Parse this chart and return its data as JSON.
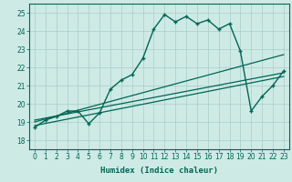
{
  "xlabel": "Humidex (Indice chaleur)",
  "bg_color": "#ceeae5",
  "grid_color": "#a8ccc8",
  "line_color": "#006655",
  "xlim": [
    -0.5,
    23.5
  ],
  "ylim": [
    17.5,
    25.5
  ],
  "yticks": [
    18,
    19,
    20,
    21,
    22,
    23,
    24,
    25
  ],
  "xticks": [
    0,
    1,
    2,
    3,
    4,
    5,
    6,
    7,
    8,
    9,
    10,
    11,
    12,
    13,
    14,
    15,
    16,
    17,
    18,
    19,
    20,
    21,
    22,
    23
  ],
  "main_y": [
    18.7,
    19.1,
    19.3,
    19.6,
    19.6,
    18.9,
    19.5,
    20.8,
    21.3,
    21.6,
    22.5,
    24.1,
    24.9,
    24.5,
    24.8,
    24.4,
    24.6,
    24.1,
    24.4,
    22.9,
    19.6,
    20.4,
    21.0,
    21.8
  ],
  "line1_start": 19.0,
  "line1_end": 22.7,
  "line2_start": 19.1,
  "line2_end": 21.7,
  "line3_start": 18.8,
  "line3_end": 21.5
}
